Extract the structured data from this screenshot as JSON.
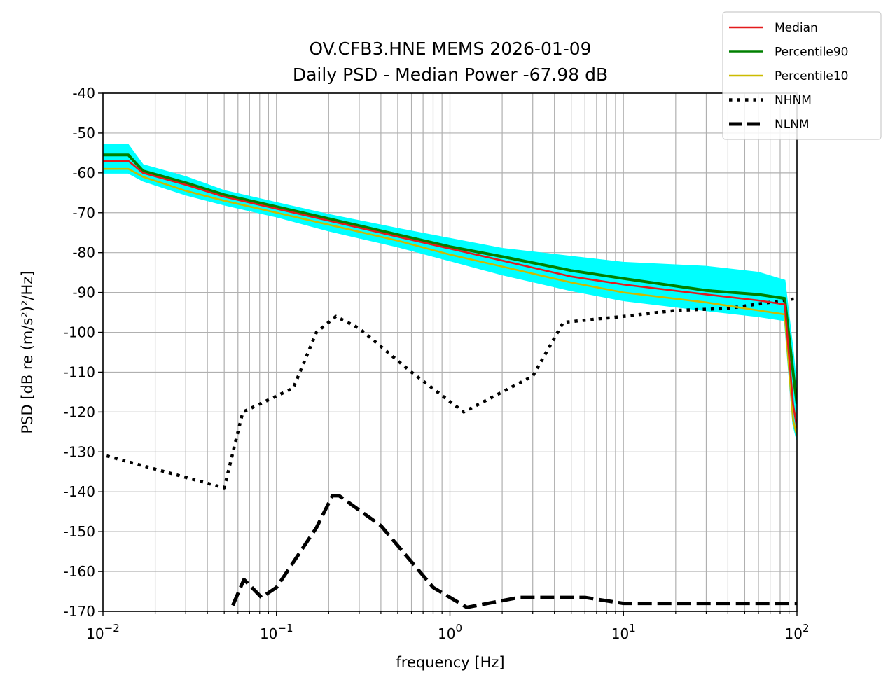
{
  "chart_data": {
    "type": "line",
    "title": "OV.CFB3.HNE MEMS 2026-01-09",
    "subtitle": "Daily PSD - Median Power -67.98 dB",
    "xlabel": "frequency [Hz]",
    "ylabel": "PSD [dB re (m/s²)²/Hz]",
    "x_scale": "log",
    "xlim": [
      0.01,
      100
    ],
    "ylim": [
      -170,
      -40
    ],
    "grid": true,
    "x_ticks": [
      {
        "value": 0.01,
        "base": "10",
        "exp": "−2"
      },
      {
        "value": 0.1,
        "base": "10",
        "exp": "−1"
      },
      {
        "value": 1,
        "base": "10",
        "exp": "0"
      },
      {
        "value": 10,
        "base": "10",
        "exp": "1"
      },
      {
        "value": 100,
        "base": "10",
        "exp": "2"
      }
    ],
    "y_ticks": [
      "-40",
      "-50",
      "-60",
      "-70",
      "-80",
      "-90",
      "-100",
      "-110",
      "-120",
      "-130",
      "-140",
      "-150",
      "-160",
      "-170"
    ],
    "legend_position": "top-right",
    "series": [
      {
        "name": "Median",
        "color": "#e31a1c",
        "style": "solid",
        "x": [
          0.01,
          0.014,
          0.017,
          0.03,
          0.05,
          0.1,
          0.2,
          0.5,
          1,
          2,
          5,
          10,
          30,
          60,
          85,
          95,
          100
        ],
        "y": [
          -57,
          -57,
          -60,
          -63,
          -66,
          -69,
          -72,
          -76,
          -79,
          -82,
          -86,
          -88,
          -90.5,
          -92,
          -93,
          -118,
          -124
        ]
      },
      {
        "name": "Percentile90",
        "color": "#008000",
        "style": "solid",
        "x": [
          0.01,
          0.014,
          0.017,
          0.03,
          0.05,
          0.1,
          0.2,
          0.5,
          1,
          2,
          5,
          10,
          30,
          60,
          85,
          95,
          100
        ],
        "y": [
          -55.5,
          -55.5,
          -59.5,
          -62.5,
          -65.5,
          -68.5,
          -71.5,
          -75.5,
          -78.5,
          -81,
          -84.5,
          -86.5,
          -89.5,
          -90.5,
          -91.5,
          -110,
          -118
        ]
      },
      {
        "name": "Percentile10",
        "color": "#ccbb00",
        "style": "solid",
        "x": [
          0.01,
          0.014,
          0.017,
          0.03,
          0.05,
          0.1,
          0.2,
          0.5,
          1,
          2,
          5,
          10,
          30,
          60,
          85,
          95,
          100
        ],
        "y": [
          -59,
          -59,
          -61,
          -64.5,
          -67,
          -70,
          -73,
          -77,
          -80.5,
          -83.5,
          -87.5,
          -90,
          -92.5,
          -94.5,
          -95.5,
          -122,
          -126
        ]
      },
      {
        "name": "NHNM",
        "color": "#000000",
        "style": "dotted",
        "x": [
          0.0105,
          0.05,
          0.064,
          0.125,
          0.17,
          0.22,
          0.3,
          0.6,
          1.2,
          3,
          4.5,
          10,
          20,
          40,
          100
        ],
        "y": [
          -131,
          -139,
          -120,
          -114,
          -100,
          -96,
          -99,
          -110,
          -120,
          -111,
          -97.5,
          -96,
          -94.5,
          -94,
          -91.5
        ]
      },
      {
        "name": "NLNM",
        "color": "#000000",
        "style": "dashed",
        "x": [
          0.056,
          0.065,
          0.082,
          0.1,
          0.17,
          0.21,
          0.23,
          0.4,
          0.8,
          1.25,
          2.5,
          6,
          10,
          100
        ],
        "y": [
          -168.5,
          -162,
          -166.5,
          -164,
          -149,
          -141,
          -141,
          -148.5,
          -164,
          -169,
          -166.5,
          -166.5,
          -168,
          -168
        ]
      }
    ],
    "cyan_band": {
      "color": "#00ffff",
      "x": [
        0.01,
        0.014,
        0.017,
        0.03,
        0.05,
        0.1,
        0.2,
        0.5,
        1,
        2,
        5,
        10,
        30,
        60,
        85,
        95,
        100
      ],
      "upper": [
        -53,
        -53,
        -58,
        -61,
        -64.5,
        -67.5,
        -70.5,
        -74,
        -76.5,
        -79,
        -81,
        -82.5,
        -83.5,
        -85,
        -87,
        -105,
        -115
      ],
      "lower": [
        -60,
        -60,
        -62,
        -65.5,
        -68,
        -71,
        -74.5,
        -78.5,
        -82,
        -85.5,
        -89.5,
        -92,
        -94.5,
        -96,
        -97,
        -123,
        -127
      ]
    }
  }
}
